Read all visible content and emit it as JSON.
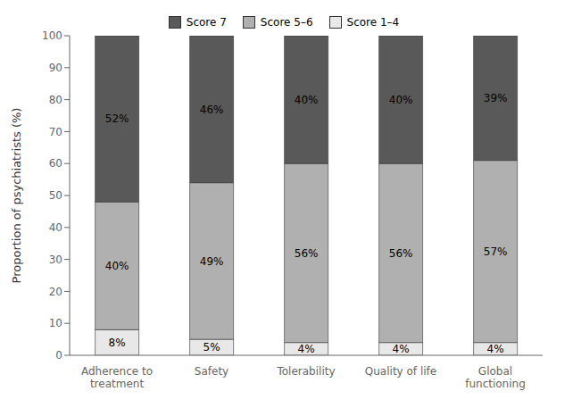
{
  "chart_data": {
    "type": "bar",
    "stacked": true,
    "categories": [
      "Adherence to\ntreatment",
      "Safety",
      "Tolerability",
      "Quality of life",
      "Global\nfunctioning"
    ],
    "ylabel": "Proportion of psychiatrists (%)",
    "ylim": [
      0,
      100
    ],
    "yticks": [
      0,
      10,
      20,
      30,
      40,
      50,
      60,
      70,
      80,
      90,
      100
    ],
    "grid": false,
    "legend": "top",
    "data_labels": true,
    "series": [
      {
        "name": "Score 1–4",
        "color": "#e8e8e8",
        "values": [
          8,
          5,
          4,
          4,
          4
        ],
        "value_labels": [
          "8%",
          "5%",
          "4%",
          "4%",
          "4%"
        ]
      },
      {
        "name": "Score 5–6",
        "color": "#b0b0b0",
        "values": [
          40,
          49,
          56,
          56,
          57
        ],
        "value_labels": [
          "40%",
          "49%",
          "56%",
          "56%",
          "57%"
        ]
      },
      {
        "name": "Score 7",
        "color": "#595959",
        "values": [
          52,
          46,
          40,
          40,
          39
        ],
        "value_labels": [
          "52%",
          "46%",
          "40%",
          "40%",
          "39%"
        ]
      }
    ]
  }
}
